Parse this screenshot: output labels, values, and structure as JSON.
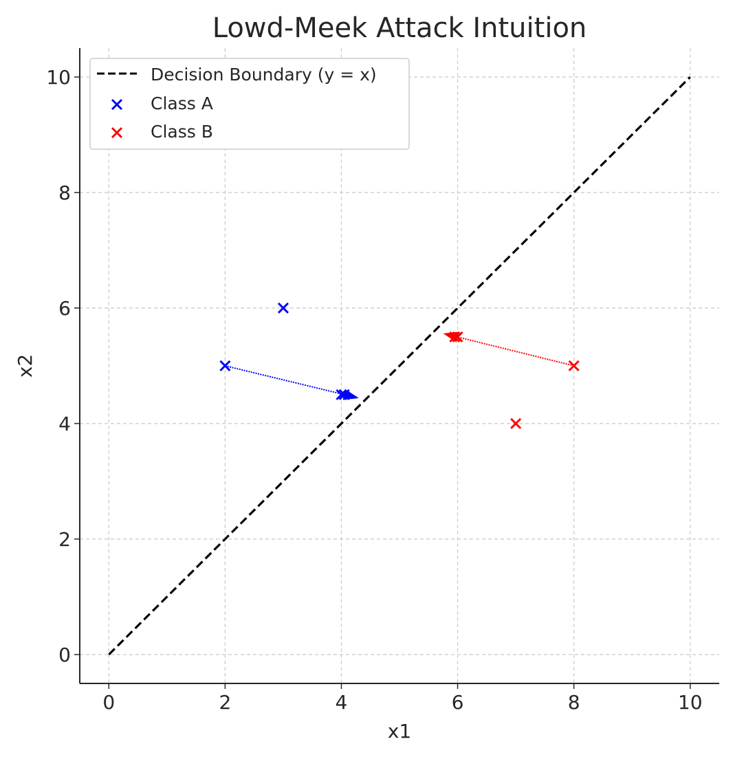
{
  "chart_data": {
    "type": "scatter",
    "title": "Lowd-Meek Attack Intuition",
    "xlabel": "x1",
    "ylabel": "x2",
    "xlim": [
      -0.5,
      10.5
    ],
    "ylim": [
      -0.5,
      10.5
    ],
    "xticks": [
      0,
      2,
      4,
      6,
      8,
      10
    ],
    "yticks": [
      0,
      2,
      4,
      6,
      8,
      10
    ],
    "grid": true,
    "legend_position": "top-left",
    "boundary": {
      "name": "Decision Boundary (y = x)",
      "x": [
        0,
        10
      ],
      "y": [
        0,
        10
      ],
      "color": "#000000"
    },
    "series": [
      {
        "name": "Class A",
        "color": "#0000ff",
        "marker": "x",
        "points": [
          [
            2,
            5
          ],
          [
            3,
            6
          ],
          [
            4,
            4.5
          ],
          [
            4.05,
            4.5
          ]
        ]
      },
      {
        "name": "Class B",
        "color": "#ff0000",
        "marker": "x",
        "points": [
          [
            8,
            5
          ],
          [
            7,
            4
          ],
          [
            6,
            5.5
          ],
          [
            5.95,
            5.5
          ]
        ]
      }
    ],
    "arrows": [
      {
        "from": [
          2,
          5
        ],
        "to": [
          4.3,
          4.44
        ],
        "color": "#0000ff"
      },
      {
        "from": [
          8,
          5
        ],
        "to": [
          5.75,
          5.56
        ],
        "color": "#ff0000"
      }
    ]
  }
}
